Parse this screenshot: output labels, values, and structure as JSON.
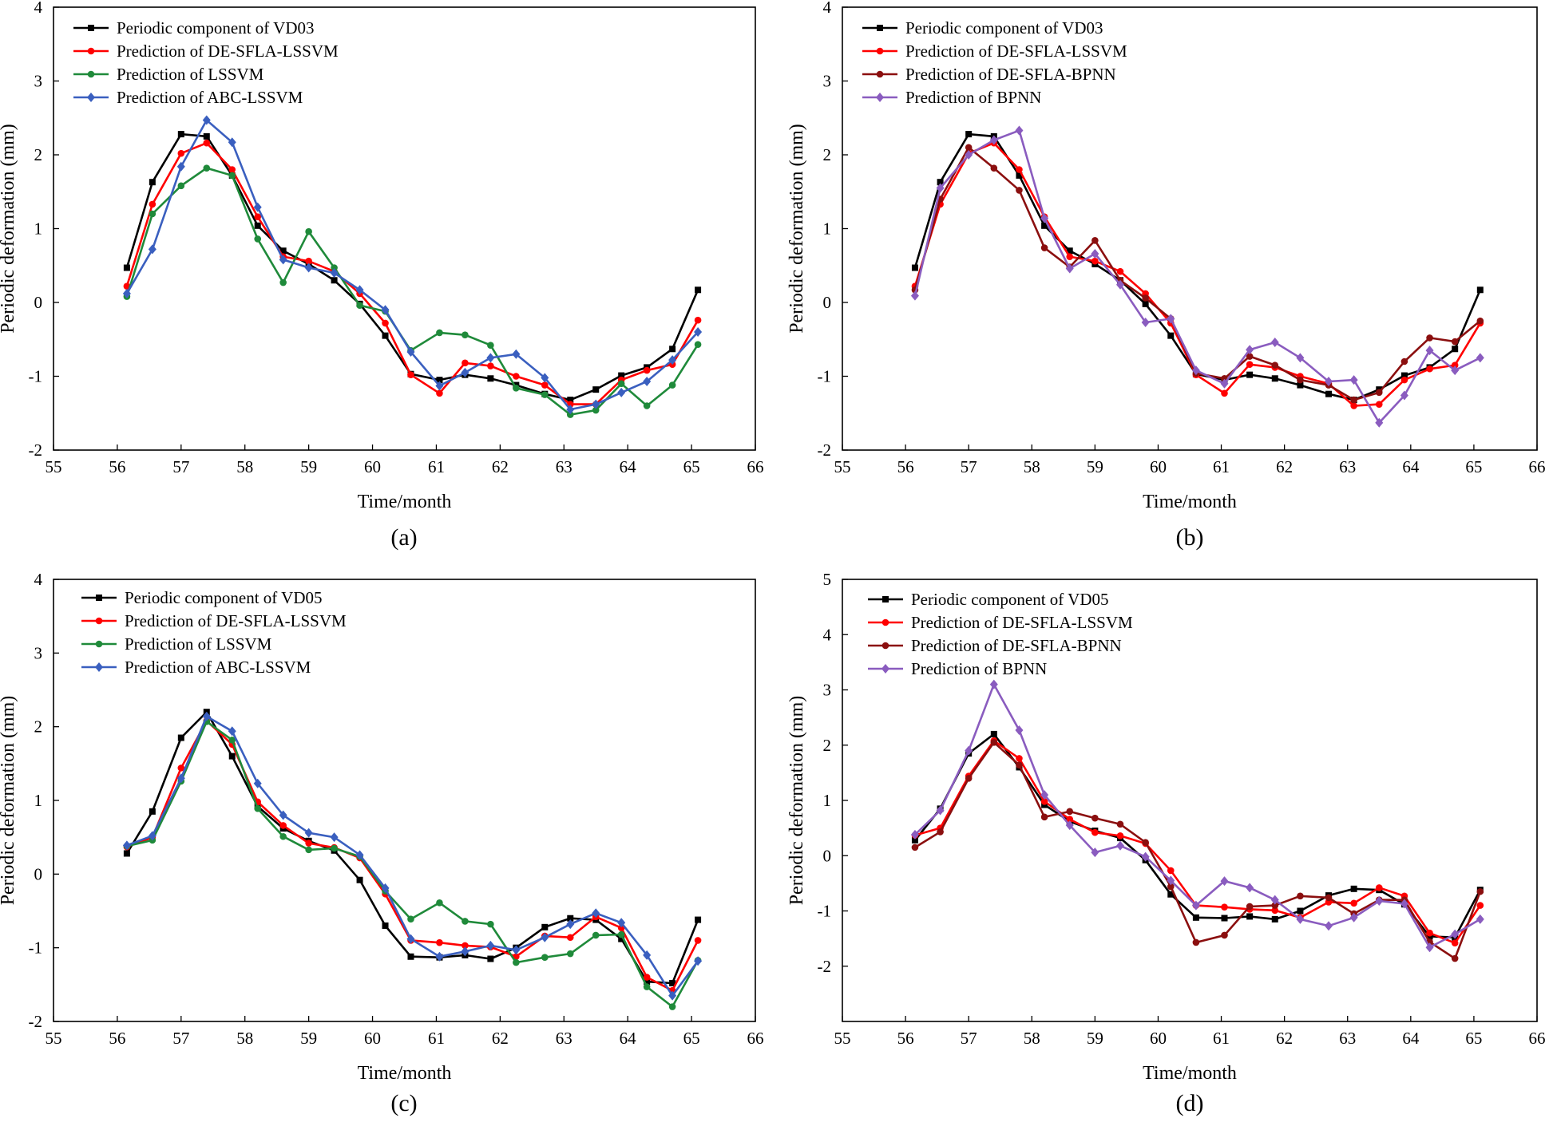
{
  "figure": {
    "x_axis_label": "Time/month",
    "y_axis_label": "Periodic deformation (mm)"
  },
  "colors": {
    "periodic": "#000000",
    "de_sfla_lssvm": "#ff0000",
    "lssvm": "#1f8a3a",
    "abc_lssvm": "#3a5fbf",
    "de_sfla_bpnn": "#8b0f0f",
    "bpnn": "#8a5cbf"
  },
  "chart_data": [
    {
      "type": "line",
      "panel_label": "(a)",
      "xlabel": "Time/month",
      "ylabel": "Periodic deformation (mm)",
      "xlim": [
        55,
        66
      ],
      "ylim": [
        -2,
        4
      ],
      "xticks": [
        55,
        56,
        57,
        58,
        59,
        60,
        61,
        62,
        63,
        64,
        65,
        66
      ],
      "yticks": [
        -2,
        -1,
        0,
        1,
        2,
        3,
        4
      ],
      "x": [
        56.15,
        56.55,
        57.0,
        57.4,
        57.8,
        58.2,
        58.6,
        59.0,
        59.4,
        59.8,
        60.2,
        60.6,
        61.05,
        61.45,
        61.85,
        62.25,
        62.7,
        63.1,
        63.5,
        63.9,
        64.3,
        64.7,
        65.1
      ],
      "series": [
        {
          "name": "Periodic component of VD03",
          "color_key": "periodic",
          "marker": "square",
          "values": [
            0.47,
            1.63,
            2.28,
            2.25,
            1.72,
            1.04,
            0.7,
            0.52,
            0.3,
            -0.02,
            -0.45,
            -0.97,
            -1.05,
            -0.98,
            -1.03,
            -1.12,
            -1.24,
            -1.32,
            -1.18,
            -0.99,
            -0.88,
            -0.63,
            0.17
          ]
        },
        {
          "name": "Prediction of DE-SFLA-LSSVM",
          "color_key": "de_sfla_lssvm",
          "marker": "circle",
          "values": [
            0.22,
            1.33,
            2.02,
            2.16,
            1.8,
            1.16,
            0.62,
            0.56,
            0.42,
            0.12,
            -0.28,
            -0.98,
            -1.23,
            -0.82,
            -0.86,
            -1.0,
            -1.12,
            -1.38,
            -1.38,
            -1.05,
            -0.92,
            -0.84,
            -0.24
          ]
        },
        {
          "name": "Prediction of LSSVM",
          "color_key": "lssvm",
          "marker": "circle",
          "values": [
            0.08,
            1.2,
            1.58,
            1.82,
            1.72,
            0.86,
            0.27,
            0.96,
            0.47,
            -0.04,
            -0.12,
            -0.65,
            -0.41,
            -0.44,
            -0.58,
            -1.16,
            -1.25,
            -1.52,
            -1.46,
            -1.1,
            -1.4,
            -1.12,
            -0.57
          ]
        },
        {
          "name": "Prediction of ABC-LSSVM",
          "color_key": "abc_lssvm",
          "marker": "diamond",
          "values": [
            0.12,
            0.72,
            1.84,
            2.47,
            2.17,
            1.29,
            0.58,
            0.47,
            0.4,
            0.17,
            -0.1,
            -0.67,
            -1.13,
            -0.95,
            -0.75,
            -0.7,
            -1.02,
            -1.45,
            -1.38,
            -1.22,
            -1.07,
            -0.78,
            -0.4
          ]
        }
      ]
    },
    {
      "type": "line",
      "panel_label": "(b)",
      "xlabel": "Time/month",
      "ylabel": "Periodic deformation (mm)",
      "xlim": [
        55,
        66
      ],
      "ylim": [
        -2,
        4
      ],
      "xticks": [
        55,
        56,
        57,
        58,
        59,
        60,
        61,
        62,
        63,
        64,
        65,
        66
      ],
      "yticks": [
        -2,
        -1,
        0,
        1,
        2,
        3,
        4
      ],
      "x": [
        56.15,
        56.55,
        57.0,
        57.4,
        57.8,
        58.2,
        58.6,
        59.0,
        59.4,
        59.8,
        60.2,
        60.6,
        61.05,
        61.45,
        61.85,
        62.25,
        62.7,
        63.1,
        63.5,
        63.9,
        64.3,
        64.7,
        65.1
      ],
      "series": [
        {
          "name": "Periodic component of VD03",
          "color_key": "periodic",
          "marker": "square",
          "values": [
            0.47,
            1.63,
            2.28,
            2.25,
            1.72,
            1.04,
            0.7,
            0.52,
            0.3,
            -0.02,
            -0.45,
            -0.97,
            -1.05,
            -0.98,
            -1.03,
            -1.12,
            -1.24,
            -1.32,
            -1.18,
            -0.99,
            -0.88,
            -0.63,
            0.17
          ]
        },
        {
          "name": "Prediction of DE-SFLA-LSSVM",
          "color_key": "de_sfla_lssvm",
          "marker": "circle",
          "values": [
            0.22,
            1.33,
            2.02,
            2.16,
            1.8,
            1.16,
            0.62,
            0.56,
            0.42,
            0.12,
            -0.28,
            -0.98,
            -1.23,
            -0.84,
            -0.88,
            -1.0,
            -1.1,
            -1.4,
            -1.38,
            -1.05,
            -0.9,
            -0.85,
            -0.28
          ]
        },
        {
          "name": "Prediction of DE-SFLA-BPNN",
          "color_key": "de_sfla_bpnn",
          "marker": "circle",
          "values": [
            0.17,
            1.4,
            2.1,
            1.82,
            1.52,
            0.74,
            0.48,
            0.84,
            0.3,
            0.06,
            -0.22,
            -0.96,
            -1.03,
            -0.73,
            -0.85,
            -1.05,
            -1.12,
            -1.32,
            -1.22,
            -0.8,
            -0.48,
            -0.53,
            -0.25
          ]
        },
        {
          "name": "Prediction of BPNN",
          "color_key": "bpnn",
          "marker": "diamond",
          "values": [
            0.09,
            1.55,
            2.0,
            2.2,
            2.33,
            1.14,
            0.46,
            0.66,
            0.24,
            -0.27,
            -0.22,
            -0.92,
            -1.1,
            -0.64,
            -0.54,
            -0.75,
            -1.07,
            -1.05,
            -1.63,
            -1.26,
            -0.65,
            -0.92,
            -0.75
          ]
        }
      ]
    },
    {
      "type": "line",
      "panel_label": "(c)",
      "xlabel": "Time/month",
      "ylabel": "Periodic deformation (mm)",
      "xlim": [
        55,
        66
      ],
      "ylim": [
        -2,
        4
      ],
      "xticks": [
        55,
        56,
        57,
        58,
        59,
        60,
        61,
        62,
        63,
        64,
        65,
        66
      ],
      "yticks": [
        -2,
        -1,
        0,
        1,
        2,
        3,
        4
      ],
      "x": [
        56.15,
        56.55,
        57.0,
        57.4,
        57.8,
        58.2,
        58.6,
        59.0,
        59.4,
        59.8,
        60.2,
        60.6,
        61.05,
        61.45,
        61.85,
        62.25,
        62.7,
        63.1,
        63.5,
        63.9,
        64.3,
        64.7,
        65.1
      ],
      "series": [
        {
          "name": "Periodic component of VD05",
          "color_key": "periodic",
          "marker": "square",
          "values": [
            0.28,
            0.85,
            1.85,
            2.2,
            1.6,
            0.92,
            0.62,
            0.45,
            0.32,
            -0.08,
            -0.7,
            -1.12,
            -1.13,
            -1.1,
            -1.15,
            -1.0,
            -0.72,
            -0.6,
            -0.62,
            -0.88,
            -1.46,
            -1.48,
            -0.62
          ]
        },
        {
          "name": "Prediction of DE-SFLA-LSSVM",
          "color_key": "de_sfla_lssvm",
          "marker": "circle",
          "values": [
            0.37,
            0.5,
            1.44,
            2.08,
            1.76,
            0.98,
            0.66,
            0.42,
            0.36,
            0.22,
            -0.27,
            -0.9,
            -0.93,
            -0.97,
            -0.99,
            -1.12,
            -0.84,
            -0.86,
            -0.58,
            -0.73,
            -1.4,
            -1.58,
            -0.9
          ]
        },
        {
          "name": "Prediction of LSSVM",
          "color_key": "lssvm",
          "marker": "circle",
          "values": [
            0.38,
            0.46,
            1.26,
            2.07,
            1.82,
            0.89,
            0.51,
            0.33,
            0.35,
            0.24,
            -0.23,
            -0.61,
            -0.39,
            -0.64,
            -0.68,
            -1.2,
            -1.13,
            -1.08,
            -0.83,
            -0.82,
            -1.53,
            -1.8,
            -1.17
          ]
        },
        {
          "name": "Prediction of ABC-LSSVM",
          "color_key": "abc_lssvm",
          "marker": "diamond",
          "values": [
            0.39,
            0.52,
            1.3,
            2.14,
            1.94,
            1.23,
            0.8,
            0.56,
            0.5,
            0.26,
            -0.19,
            -0.88,
            -1.12,
            -1.05,
            -0.97,
            -1.03,
            -0.86,
            -0.68,
            -0.53,
            -0.66,
            -1.1,
            -1.65,
            -1.18
          ]
        }
      ]
    },
    {
      "type": "line",
      "panel_label": "(d)",
      "xlabel": "Time/month",
      "ylabel": "Periodic deformation (mm)",
      "xlim": [
        55,
        66
      ],
      "ylim": [
        -3,
        5
      ],
      "xticks": [
        55,
        56,
        57,
        58,
        59,
        60,
        61,
        62,
        63,
        64,
        65,
        66
      ],
      "yticks": [
        -2,
        -1,
        0,
        1,
        2,
        3,
        4,
        5
      ],
      "x": [
        56.15,
        56.55,
        57.0,
        57.4,
        57.8,
        58.2,
        58.6,
        59.0,
        59.4,
        59.8,
        60.2,
        60.6,
        61.05,
        61.45,
        61.85,
        62.25,
        62.7,
        63.1,
        63.5,
        63.9,
        64.3,
        64.7,
        65.1
      ],
      "series": [
        {
          "name": "Periodic component of VD05",
          "color_key": "periodic",
          "marker": "square",
          "values": [
            0.28,
            0.85,
            1.85,
            2.2,
            1.6,
            0.92,
            0.62,
            0.45,
            0.32,
            -0.08,
            -0.7,
            -1.12,
            -1.13,
            -1.1,
            -1.15,
            -1.0,
            -0.72,
            -0.6,
            -0.62,
            -0.88,
            -1.46,
            -1.48,
            -0.62
          ]
        },
        {
          "name": "Prediction of DE-SFLA-LSSVM",
          "color_key": "de_sfla_lssvm",
          "marker": "circle",
          "values": [
            0.37,
            0.5,
            1.44,
            2.08,
            1.76,
            0.98,
            0.66,
            0.42,
            0.36,
            0.22,
            -0.27,
            -0.9,
            -0.93,
            -0.97,
            -0.99,
            -1.12,
            -0.84,
            -0.86,
            -0.58,
            -0.73,
            -1.4,
            -1.58,
            -0.9
          ]
        },
        {
          "name": "Prediction of DE-SFLA-BPNN",
          "color_key": "de_sfla_bpnn",
          "marker": "circle",
          "values": [
            0.15,
            0.43,
            1.4,
            2.05,
            1.64,
            0.7,
            0.8,
            0.68,
            0.57,
            0.24,
            -0.56,
            -1.57,
            -1.44,
            -0.92,
            -0.9,
            -0.73,
            -0.76,
            -1.05,
            -0.8,
            -0.8,
            -1.56,
            -1.86,
            -0.65
          ]
        },
        {
          "name": "Prediction of BPNN",
          "color_key": "bpnn",
          "marker": "diamond",
          "values": [
            0.38,
            0.82,
            1.9,
            3.1,
            2.27,
            1.1,
            0.55,
            0.06,
            0.18,
            -0.02,
            -0.45,
            -0.9,
            -0.46,
            -0.58,
            -0.8,
            -1.15,
            -1.27,
            -1.12,
            -0.82,
            -0.87,
            -1.66,
            -1.42,
            -1.15
          ]
        }
      ]
    }
  ]
}
